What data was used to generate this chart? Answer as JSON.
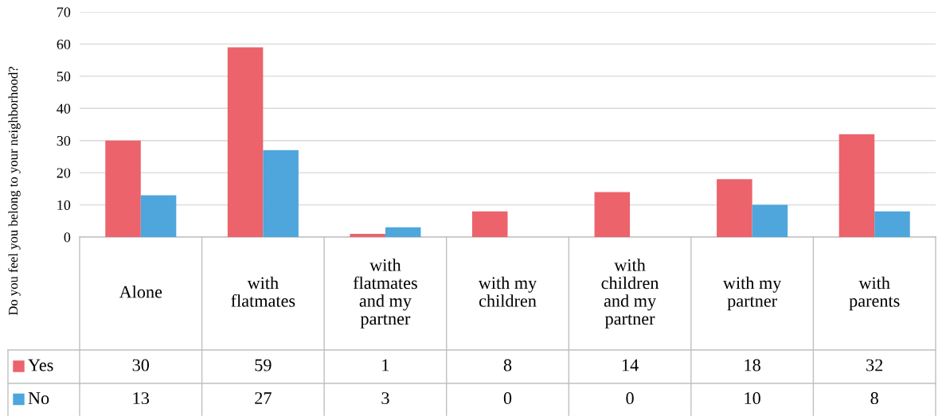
{
  "chart_data": {
    "type": "bar",
    "ylabel": "Do you feel you belong to your neighborhood?",
    "categories": [
      "Alone",
      "with\nflatmates",
      "with\nflatmates\nand my\npartner",
      "with my\nchildren",
      "with\nchildren\nand my\npartner",
      "with my\npartner",
      "with\nparents"
    ],
    "series": [
      {
        "name": "Yes",
        "color": "#ec636b",
        "values": [
          30,
          59,
          1,
          8,
          14,
          18,
          32
        ]
      },
      {
        "name": "No",
        "color": "#4ea6dc",
        "values": [
          13,
          27,
          3,
          0,
          0,
          10,
          8
        ]
      }
    ],
    "ylim": [
      0,
      70
    ],
    "yticks": [
      0,
      10,
      20,
      30,
      40,
      50,
      60,
      70
    ],
    "grid": "y",
    "data_labels": true,
    "legend": "bottom"
  }
}
